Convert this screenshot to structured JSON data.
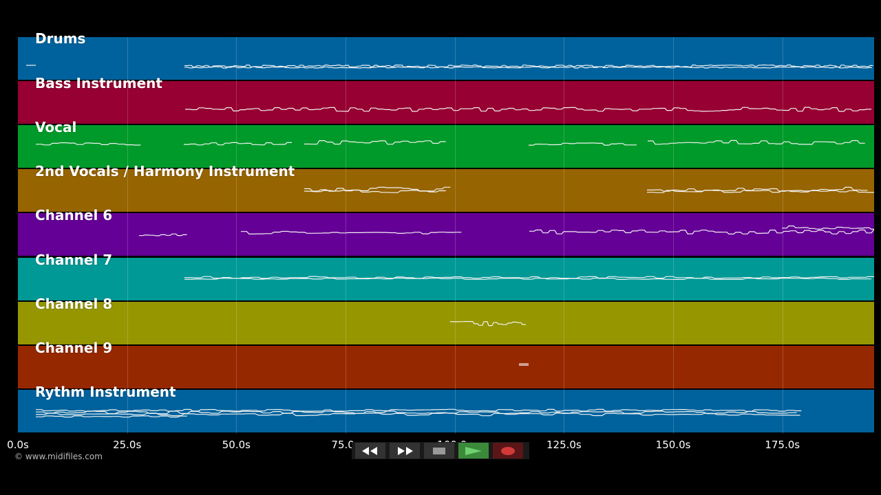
{
  "tracks": [
    {
      "name": "Drums",
      "color": "#00629c"
    },
    {
      "name": "Bass Instrument",
      "color": "#960032"
    },
    {
      "name": "Vocal",
      "color": "#009a2a"
    },
    {
      "name": "2nd Vocals / Harmony Instrument",
      "color": "#966400"
    },
    {
      "name": "Channel 6",
      "color": "#640096"
    },
    {
      "name": "Channel 7",
      "color": "#009996"
    },
    {
      "name": "Channel 8",
      "color": "#969600"
    },
    {
      "name": "Channel 9",
      "color": "#962800"
    },
    {
      "name": "Rythm Instrument",
      "color": "#00629c"
    }
  ],
  "timeline": {
    "unit": "s",
    "ticks": [
      "0.0s",
      "25.0s",
      "50.0s",
      "75.0s",
      "100.0s",
      "125.0s",
      "150.0s",
      "175.0s"
    ],
    "tick_values": [
      0,
      25,
      50,
      75,
      100,
      125,
      150,
      175
    ],
    "range": [
      0,
      196
    ]
  },
  "copyright": "© www.midifiles.com",
  "transport": {
    "rewind_icon": "rewind-icon",
    "forward_icon": "fast-forward-icon",
    "stop_icon": "stop-icon",
    "play_icon": "play-icon",
    "record_icon": "record-icon",
    "play_color": "#3a8a3a",
    "record_color": "#d23a3a"
  }
}
